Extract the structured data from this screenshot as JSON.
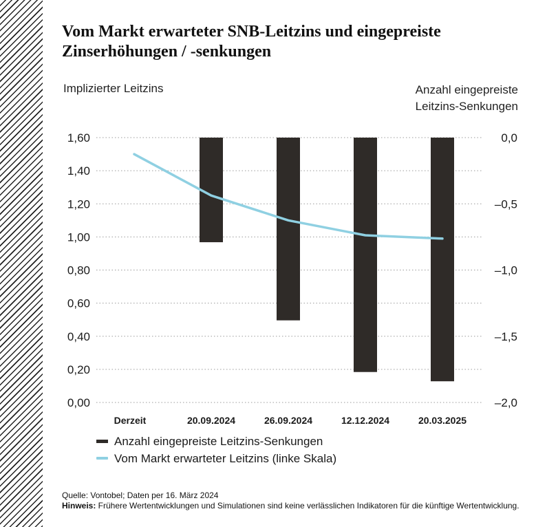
{
  "chart_data": {
    "type": "bar+line",
    "title": "Vom Markt erwarteter SNB-Leitzins und eingepreiste Zinserhöhungen / -senkungen",
    "categories": [
      "Derzeit",
      "20.09.2024",
      "26.09.2024",
      "12.12.2024",
      "20.03.2025"
    ],
    "y_left": {
      "label": "Implizierter Leitzins",
      "range": [
        0,
        1.6
      ],
      "ticks": [
        "1,60",
        "1,40",
        "1,20",
        "1,00",
        "0,80",
        "0,60",
        "0,40",
        "0,20",
        "0,00"
      ]
    },
    "y_right": {
      "label_line1": "Anzahl eingepreiste",
      "label_line2": "Leitzins-Senkungen",
      "range": [
        -2.0,
        0.0
      ],
      "ticks": [
        "0,0",
        "–0,5",
        "–1,0",
        "–1,5",
        "–2,0"
      ]
    },
    "series": [
      {
        "name": "Anzahl eingepreiste Leitzins-Senkungen",
        "type": "bar",
        "axis": "right",
        "color": "#2f2b28",
        "values": [
          null,
          -0.79,
          -1.38,
          -1.77,
          -1.84
        ]
      },
      {
        "name": "Vom Markt erwarteter Leitzins (linke Skala)",
        "type": "line",
        "axis": "left",
        "color": "#8fd0e2",
        "values": [
          1.5,
          1.25,
          1.1,
          1.01,
          0.99
        ]
      }
    ],
    "grid": "horizontal-dotted",
    "legend": "bottom-left"
  },
  "footer": {
    "source": "Quelle: Vontobel; Daten per 16. März 2024",
    "note_label": "Hinweis:",
    "note_text": " Frühere Wertentwicklungen und Simulationen sind keine verlässlichen Indikatoren für die künftige Wertentwicklung."
  }
}
